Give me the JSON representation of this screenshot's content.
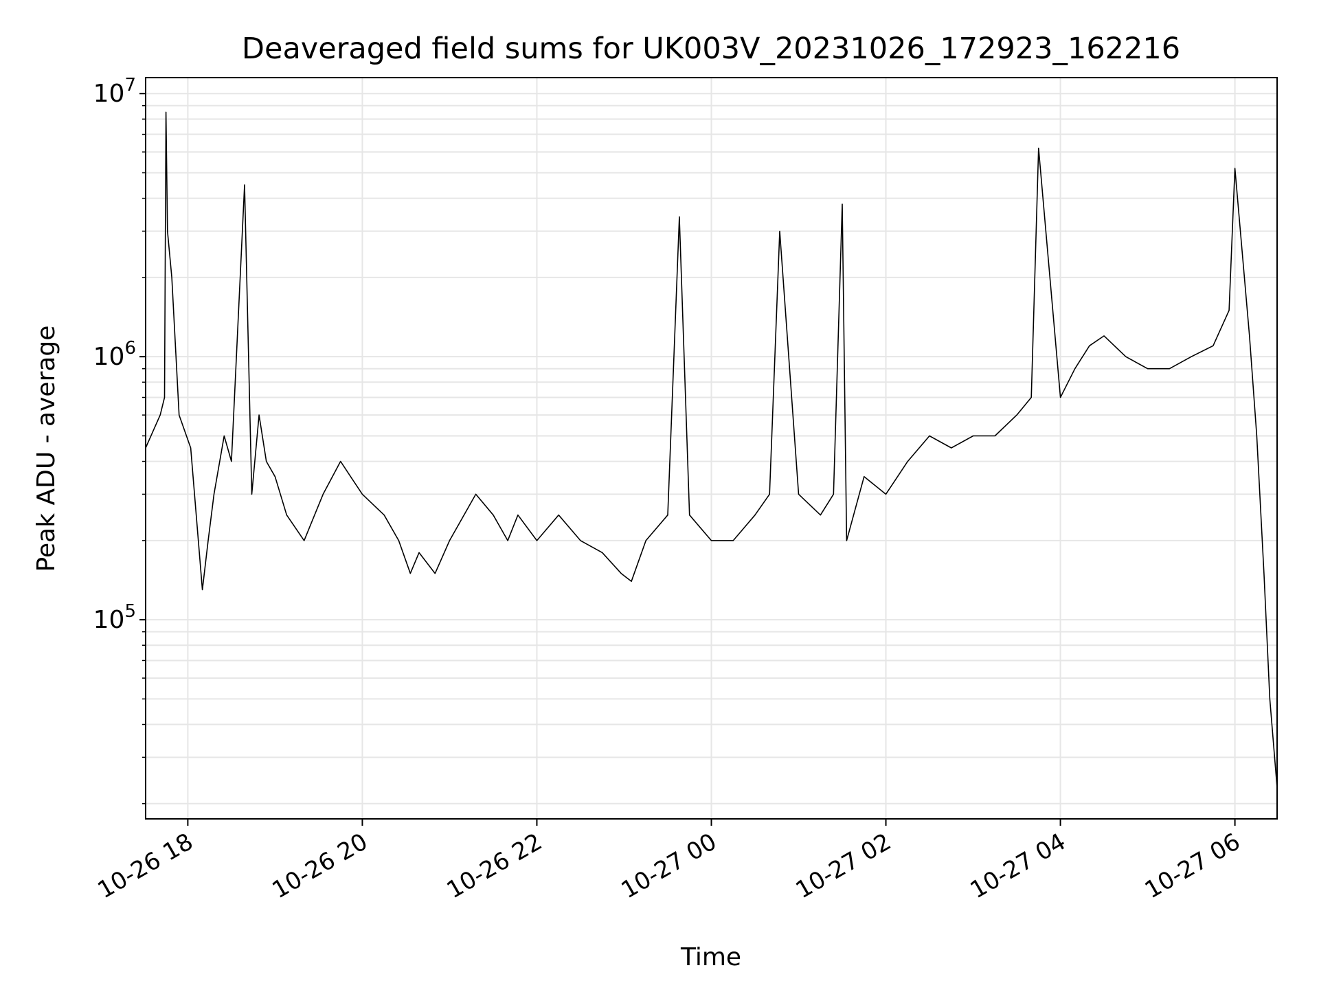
{
  "chart_data": {
    "type": "line",
    "title": "Deaveraged field sums for UK003V_20231026_172923_162216",
    "xlabel": "Time",
    "ylabel": "Peak ADU - average",
    "yscale": "log",
    "grid": true,
    "legend": "none",
    "line_color": "#000000",
    "grid_color": "#e6e6e6",
    "xlim": [
      "2023-10-26 17:31",
      "2023-10-27 06:29"
    ],
    "ylim": [
      17500,
      11500000
    ],
    "x_ticks": [
      {
        "t": "2023-10-26 18:00",
        "label": "10-26 18"
      },
      {
        "t": "2023-10-26 20:00",
        "label": "10-26 20"
      },
      {
        "t": "2023-10-26 22:00",
        "label": "10-26 22"
      },
      {
        "t": "2023-10-27 00:00",
        "label": "10-27 00"
      },
      {
        "t": "2023-10-27 02:00",
        "label": "10-27 02"
      },
      {
        "t": "2023-10-27 04:00",
        "label": "10-27 04"
      },
      {
        "t": "2023-10-27 06:00",
        "label": "10-27 06"
      }
    ],
    "y_ticks": [
      {
        "value": 100000,
        "base": "10",
        "exp": "5"
      },
      {
        "value": 1000000,
        "base": "10",
        "exp": "6"
      },
      {
        "value": 10000000,
        "base": "10",
        "exp": "7"
      }
    ],
    "series": [
      {
        "x": [
          "2023-10-26 17:31",
          "2023-10-26 17:41",
          "2023-10-26 17:44",
          "2023-10-26 17:45",
          "2023-10-26 17:46",
          "2023-10-26 17:49",
          "2023-10-26 17:54",
          "2023-10-26 18:02",
          "2023-10-26 18:10",
          "2023-10-26 18:14",
          "2023-10-26 18:18",
          "2023-10-26 18:25",
          "2023-10-26 18:30",
          "2023-10-26 18:39",
          "2023-10-26 18:44",
          "2023-10-26 18:49",
          "2023-10-26 18:54",
          "2023-10-26 19:00",
          "2023-10-26 19:08",
          "2023-10-26 19:20",
          "2023-10-26 19:33",
          "2023-10-26 19:45",
          "2023-10-26 20:00",
          "2023-10-26 20:15",
          "2023-10-26 20:25",
          "2023-10-26 20:33",
          "2023-10-26 20:39",
          "2023-10-26 20:50",
          "2023-10-26 21:00",
          "2023-10-26 21:18",
          "2023-10-26 21:30",
          "2023-10-26 21:40",
          "2023-10-26 21:47",
          "2023-10-26 22:00",
          "2023-10-26 22:15",
          "2023-10-26 22:30",
          "2023-10-26 22:45",
          "2023-10-26 22:58",
          "2023-10-26 23:05",
          "2023-10-26 23:15",
          "2023-10-26 23:30",
          "2023-10-26 23:38",
          "2023-10-26 23:45",
          "2023-10-27 00:00",
          "2023-10-27 00:15",
          "2023-10-27 00:30",
          "2023-10-27 00:40",
          "2023-10-27 00:47",
          "2023-10-27 01:00",
          "2023-10-27 01:15",
          "2023-10-27 01:24",
          "2023-10-27 01:30",
          "2023-10-27 01:33",
          "2023-10-27 01:45",
          "2023-10-27 02:00",
          "2023-10-27 02:15",
          "2023-10-27 02:30",
          "2023-10-27 02:45",
          "2023-10-27 03:00",
          "2023-10-27 03:15",
          "2023-10-27 03:30",
          "2023-10-27 03:40",
          "2023-10-27 03:45",
          "2023-10-27 04:00",
          "2023-10-27 04:10",
          "2023-10-27 04:20",
          "2023-10-27 04:30",
          "2023-10-27 04:45",
          "2023-10-27 05:00",
          "2023-10-27 05:15",
          "2023-10-27 05:30",
          "2023-10-27 05:45",
          "2023-10-27 05:56",
          "2023-10-27 06:00",
          "2023-10-27 06:10",
          "2023-10-27 06:15",
          "2023-10-27 06:20",
          "2023-10-27 06:24",
          "2023-10-27 06:29"
        ],
        "y": [
          450000,
          600000,
          700000,
          8500000,
          3000000,
          2000000,
          600000,
          450000,
          130000,
          200000,
          300000,
          500000,
          400000,
          4500000,
          300000,
          600000,
          400000,
          350000,
          250000,
          200000,
          300000,
          400000,
          300000,
          250000,
          200000,
          150000,
          180000,
          150000,
          200000,
          300000,
          250000,
          200000,
          250000,
          200000,
          250000,
          200000,
          180000,
          150000,
          140000,
          200000,
          250000,
          3400000,
          250000,
          200000,
          200000,
          250000,
          300000,
          3000000,
          300000,
          250000,
          300000,
          3800000,
          200000,
          350000,
          300000,
          400000,
          500000,
          450000,
          500000,
          500000,
          600000,
          700000,
          6200000,
          700000,
          900000,
          1100000,
          1200000,
          1000000,
          900000,
          900000,
          1000000,
          1100000,
          1500000,
          5200000,
          1200000,
          500000,
          150000,
          50000,
          23000
        ]
      }
    ]
  }
}
